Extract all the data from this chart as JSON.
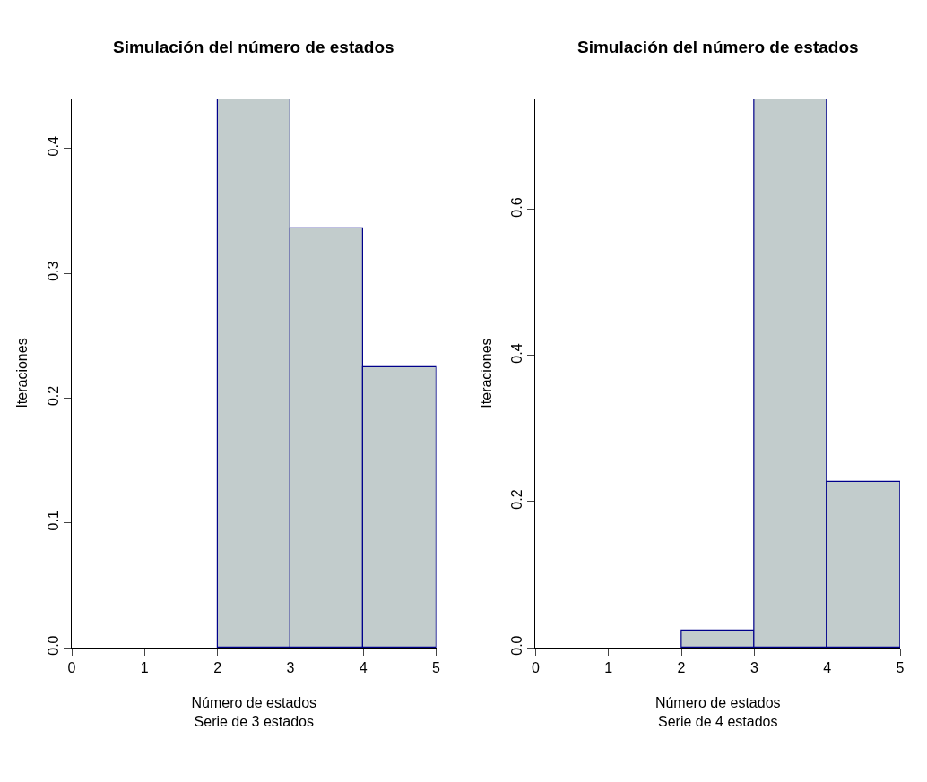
{
  "chart_data": [
    {
      "type": "histogram",
      "title": "Simulación del número de estados",
      "xlabel": "Número de estados\nSerie de 3 estados",
      "ylabel": "Iteraciones",
      "bins": [
        0,
        1,
        2,
        3,
        4,
        5
      ],
      "values": [
        0,
        0,
        0.44,
        0.336,
        0.225
      ],
      "color": "#c2cccc",
      "xlim": [
        0,
        5
      ],
      "xticks": [
        0,
        1,
        2,
        3,
        4,
        5
      ],
      "ylim": [
        0,
        0.44
      ],
      "yticks": [
        {
          "value": 0,
          "label": "0.0"
        },
        0.1,
        0.2,
        0.3,
        0.4
      ]
    },
    {
      "type": "histogram",
      "title": "Simulación del número de estados",
      "xlabel": "Número de estados\nSerie de 4 estados",
      "ylabel": "Iteraciones",
      "bins": [
        0,
        1,
        2,
        3,
        4,
        5
      ],
      "values": [
        0,
        0,
        0.023,
        0.752,
        0.227
      ],
      "color": "#c2cccc",
      "xlim": [
        0,
        5
      ],
      "xticks": [
        0,
        1,
        2,
        3,
        4,
        5
      ],
      "ylim": [
        0,
        0.752
      ],
      "yticks": [
        {
          "value": 0,
          "label": "0.0"
        },
        0.2,
        0.4,
        0.6
      ]
    }
  ]
}
